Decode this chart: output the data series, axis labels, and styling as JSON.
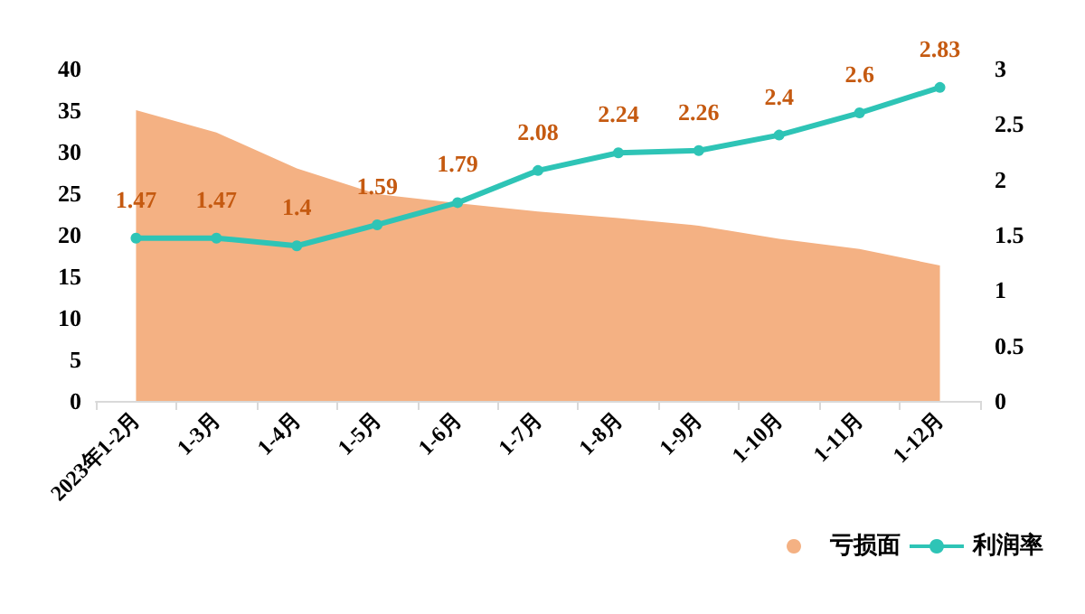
{
  "chart_data": {
    "type": "area",
    "categories": [
      "2023年1-2月",
      "1-3月",
      "1-4月",
      "1-5月",
      "1-6月",
      "1-7月",
      "1-8月",
      "1-9月",
      "1-10月",
      "1-11月",
      "1-12月"
    ],
    "series": [
      {
        "name": "亏损面",
        "color": "#f4b183",
        "values": [
          35,
          32.3,
          28,
          24.9,
          23.8,
          22.8,
          22,
          21.1,
          19.5,
          18.3,
          16.3
        ]
      },
      {
        "name": "利润率",
        "type": "line",
        "axis": "y2",
        "color": "#2ec4b6",
        "marker": "circle",
        "data_labels": true,
        "values": [
          1.47,
          1.47,
          1.4,
          1.59,
          1.79,
          2.08,
          2.24,
          2.26,
          2.4,
          2.6,
          2.83
        ]
      }
    ],
    "ylim": [
      0,
      40
    ],
    "yticks": [
      0,
      5,
      10,
      15,
      20,
      25,
      30,
      35,
      40
    ],
    "y2lim": [
      0,
      3
    ],
    "y2ticks": [
      0,
      0.5,
      1,
      1.5,
      2,
      2.5,
      3
    ],
    "grid": false,
    "legend": "bottom right"
  }
}
